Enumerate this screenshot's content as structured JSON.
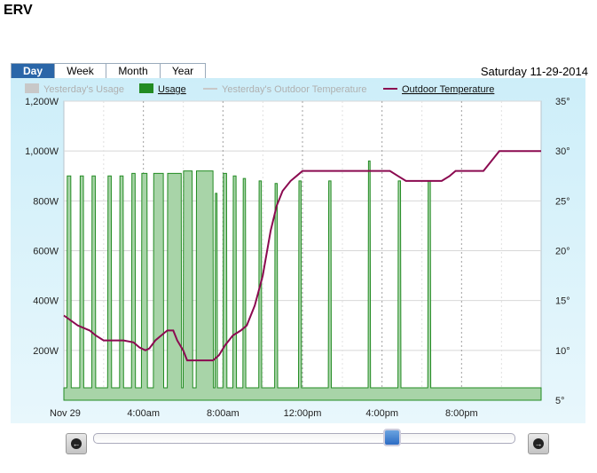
{
  "page": {
    "title": "ERV"
  },
  "tabs": [
    {
      "label": "Day",
      "active": true
    },
    {
      "label": "Week",
      "active": false
    },
    {
      "label": "Month",
      "active": false
    },
    {
      "label": "Year",
      "active": false
    }
  ],
  "date_label": "Saturday 11-29-2014",
  "colors": {
    "usage": "#228b22",
    "usage_fill": "#a8d4a8",
    "outdoor_temp": "#8b0a50",
    "yesterday": "#c8c8c8"
  },
  "nav": {
    "prev_icon": "arrow-left-icon",
    "next_icon": "arrow-right-icon"
  },
  "chart_data": {
    "type": "area",
    "legend": [
      {
        "name": "Yesterday's Usage",
        "enabled": false
      },
      {
        "name": "Usage",
        "enabled": true
      },
      {
        "name": "Yesterday's Outdoor Temperature",
        "enabled": false
      },
      {
        "name": "Outdoor Temperature",
        "enabled": true
      }
    ],
    "legend_position": "top",
    "x_ticks": [
      "Nov 29",
      "4:00am",
      "8:00am",
      "12:00pm",
      "4:00pm",
      "8:00pm"
    ],
    "x_tick_hours": [
      0,
      4,
      8,
      12,
      16,
      20
    ],
    "xlim_hours": [
      0,
      24
    ],
    "y_left_ticks": [
      "200W",
      "400W",
      "600W",
      "800W",
      "1,000W",
      "1,200W"
    ],
    "y_left_values": [
      200,
      400,
      600,
      800,
      1000,
      1200
    ],
    "ylim_left": [
      0,
      1200
    ],
    "y_right_ticks": [
      "5°",
      "10°",
      "15°",
      "20°",
      "25°",
      "30°",
      "35°"
    ],
    "y_right_values": [
      5,
      10,
      15,
      20,
      25,
      30,
      35
    ],
    "ylim_right": [
      5,
      35
    ],
    "grid": true,
    "series": [
      {
        "name": "Usage",
        "axis": "left",
        "points": [
          [
            0.0,
            50
          ],
          [
            0.15,
            50
          ],
          [
            0.17,
            900
          ],
          [
            0.35,
            900
          ],
          [
            0.37,
            50
          ],
          [
            0.8,
            50
          ],
          [
            0.82,
            900
          ],
          [
            0.98,
            900
          ],
          [
            1.0,
            50
          ],
          [
            1.4,
            50
          ],
          [
            1.42,
            900
          ],
          [
            1.58,
            900
          ],
          [
            1.6,
            50
          ],
          [
            2.2,
            50
          ],
          [
            2.22,
            900
          ],
          [
            2.38,
            900
          ],
          [
            2.4,
            50
          ],
          [
            2.8,
            50
          ],
          [
            2.82,
            900
          ],
          [
            2.98,
            900
          ],
          [
            3.0,
            50
          ],
          [
            3.4,
            50
          ],
          [
            3.42,
            910
          ],
          [
            3.58,
            910
          ],
          [
            3.6,
            50
          ],
          [
            3.9,
            50
          ],
          [
            3.92,
            910
          ],
          [
            4.18,
            910
          ],
          [
            4.2,
            50
          ],
          [
            4.5,
            50
          ],
          [
            4.52,
            910
          ],
          [
            5.0,
            910
          ],
          [
            5.02,
            50
          ],
          [
            5.2,
            50
          ],
          [
            5.22,
            910
          ],
          [
            5.9,
            910
          ],
          [
            5.92,
            50
          ],
          [
            6.0,
            50
          ],
          [
            6.02,
            920
          ],
          [
            6.45,
            920
          ],
          [
            6.48,
            50
          ],
          [
            6.65,
            50
          ],
          [
            6.67,
            920
          ],
          [
            7.5,
            920
          ],
          [
            7.52,
            50
          ],
          [
            7.6,
            50
          ],
          [
            7.62,
            830
          ],
          [
            7.7,
            830
          ],
          [
            7.72,
            50
          ],
          [
            8.0,
            50
          ],
          [
            8.02,
            910
          ],
          [
            8.18,
            910
          ],
          [
            8.2,
            50
          ],
          [
            8.5,
            50
          ],
          [
            8.52,
            900
          ],
          [
            8.66,
            900
          ],
          [
            8.68,
            50
          ],
          [
            9.0,
            50
          ],
          [
            9.02,
            890
          ],
          [
            9.13,
            890
          ],
          [
            9.15,
            50
          ],
          [
            9.8,
            50
          ],
          [
            9.82,
            880
          ],
          [
            9.93,
            880
          ],
          [
            9.95,
            50
          ],
          [
            10.6,
            50
          ],
          [
            10.62,
            870
          ],
          [
            10.73,
            870
          ],
          [
            10.75,
            50
          ],
          [
            11.8,
            50
          ],
          [
            11.82,
            880
          ],
          [
            11.93,
            880
          ],
          [
            11.95,
            50
          ],
          [
            13.3,
            50
          ],
          [
            13.32,
            880
          ],
          [
            13.43,
            880
          ],
          [
            13.45,
            50
          ],
          [
            15.3,
            50
          ],
          [
            15.32,
            960
          ],
          [
            15.4,
            960
          ],
          [
            15.42,
            50
          ],
          [
            16.8,
            50
          ],
          [
            16.82,
            880
          ],
          [
            16.93,
            880
          ],
          [
            16.95,
            50
          ],
          [
            18.3,
            50
          ],
          [
            18.32,
            880
          ],
          [
            18.43,
            880
          ],
          [
            18.45,
            50
          ],
          [
            24.0,
            50
          ]
        ]
      },
      {
        "name": "Outdoor Temperature",
        "axis": "right",
        "points": [
          [
            0.0,
            13.5
          ],
          [
            0.7,
            12.5
          ],
          [
            1.3,
            12.0
          ],
          [
            1.6,
            11.5
          ],
          [
            2.0,
            11.0
          ],
          [
            3.0,
            11.0
          ],
          [
            3.5,
            10.8
          ],
          [
            3.8,
            10.3
          ],
          [
            4.1,
            10.0
          ],
          [
            4.3,
            10.2
          ],
          [
            4.6,
            11.0
          ],
          [
            4.9,
            11.5
          ],
          [
            5.2,
            12.0
          ],
          [
            5.5,
            12.0
          ],
          [
            5.7,
            11.0
          ],
          [
            6.0,
            10.0
          ],
          [
            6.2,
            9.0
          ],
          [
            7.5,
            9.0
          ],
          [
            7.8,
            9.5
          ],
          [
            8.1,
            10.5
          ],
          [
            8.5,
            11.5
          ],
          [
            8.9,
            12.0
          ],
          [
            9.2,
            12.5
          ],
          [
            9.6,
            14.5
          ],
          [
            10.0,
            17.5
          ],
          [
            10.4,
            22.0
          ],
          [
            10.7,
            24.5
          ],
          [
            11.0,
            26.0
          ],
          [
            11.4,
            27.0
          ],
          [
            11.7,
            27.5
          ],
          [
            12.0,
            28.0
          ],
          [
            16.4,
            28.0
          ],
          [
            16.8,
            27.5
          ],
          [
            17.2,
            27.0
          ],
          [
            19.0,
            27.0
          ],
          [
            19.4,
            27.5
          ],
          [
            19.7,
            28.0
          ],
          [
            21.1,
            28.0
          ],
          [
            21.5,
            29.0
          ],
          [
            21.9,
            30.0
          ],
          [
            23.8,
            30.0
          ],
          [
            24.0,
            30.0
          ]
        ]
      }
    ]
  }
}
